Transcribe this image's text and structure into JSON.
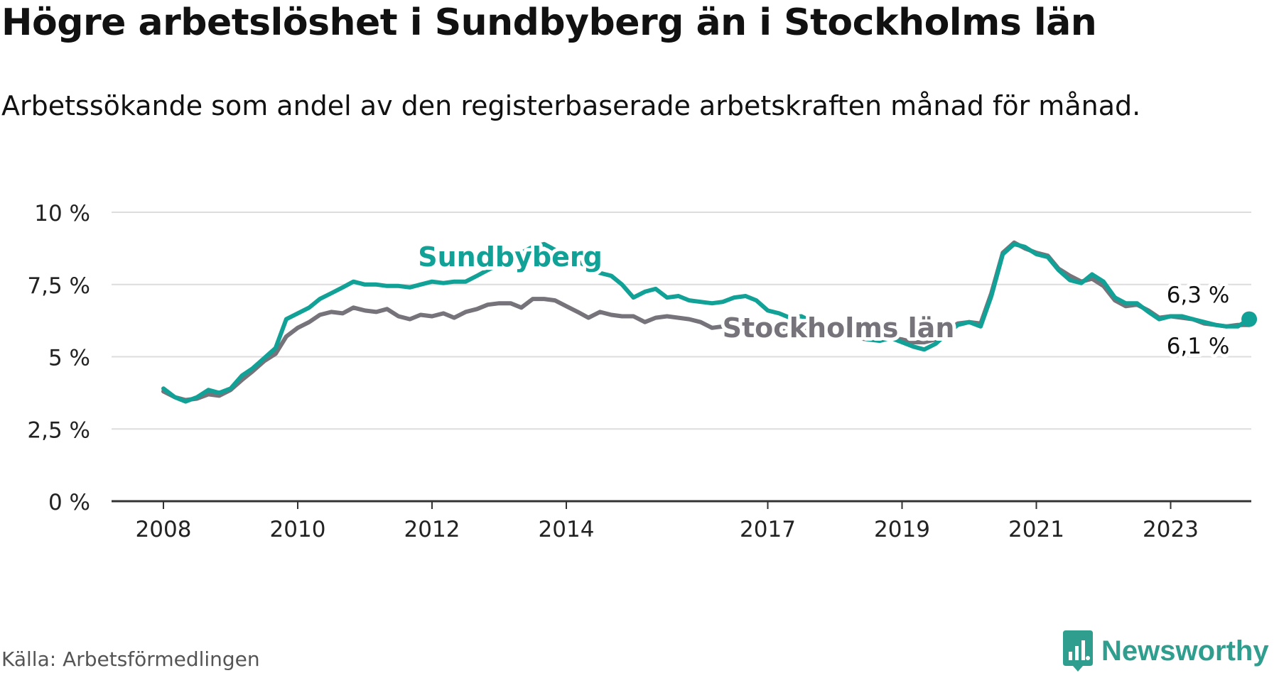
{
  "header": {
    "title": "Högre arbetslöshet i Sundbyberg än i Stockholms län",
    "subtitle": "Arbetssökande som andel av den registerbaserade arbetskraften månad för månad."
  },
  "footer": {
    "source": "Källa: Arbetsförmedlingen",
    "brand": "Newsworthy"
  },
  "colors": {
    "sundbyberg": "#11a196",
    "stockholm": "#76737b",
    "grid": "#dddddd",
    "axis": "#333333",
    "brand": "#2f9e8f"
  },
  "chart_data": {
    "type": "line",
    "title": "Högre arbetslöshet i Sundbyberg än i Stockholms län",
    "ylabel": "",
    "xlabel": "",
    "ylim": [
      0,
      10
    ],
    "y_ticks": [
      0,
      2.5,
      5,
      7.5,
      10
    ],
    "y_tick_labels": [
      "0 %",
      "2,5 %",
      "5 %",
      "7,5 %",
      "10 %"
    ],
    "x_ticks": [
      2008,
      2010,
      2012,
      2014,
      2017,
      2019,
      2021,
      2023
    ],
    "x_tick_labels": [
      "2008",
      "2010",
      "2012",
      "2014",
      "2017",
      "2019",
      "2021",
      "2023"
    ],
    "series": [
      {
        "name": "Sundbyberg",
        "end_label": "6,3 %",
        "points": [
          [
            2008.0,
            3.9
          ],
          [
            2008.17,
            3.6
          ],
          [
            2008.33,
            3.45
          ],
          [
            2008.5,
            3.6
          ],
          [
            2008.67,
            3.85
          ],
          [
            2008.83,
            3.75
          ],
          [
            2009.0,
            3.9
          ],
          [
            2009.17,
            4.35
          ],
          [
            2009.33,
            4.6
          ],
          [
            2009.5,
            4.95
          ],
          [
            2009.67,
            5.3
          ],
          [
            2009.83,
            6.3
          ],
          [
            2010.0,
            6.5
          ],
          [
            2010.17,
            6.7
          ],
          [
            2010.33,
            7.0
          ],
          [
            2010.5,
            7.2
          ],
          [
            2010.67,
            7.4
          ],
          [
            2010.83,
            7.6
          ],
          [
            2011.0,
            7.5
          ],
          [
            2011.17,
            7.5
          ],
          [
            2011.33,
            7.45
          ],
          [
            2011.5,
            7.45
          ],
          [
            2011.67,
            7.4
          ],
          [
            2011.83,
            7.5
          ],
          [
            2012.0,
            7.6
          ],
          [
            2012.17,
            7.55
          ],
          [
            2012.33,
            7.6
          ],
          [
            2012.5,
            7.6
          ],
          [
            2012.67,
            7.8
          ],
          [
            2012.83,
            8.0
          ],
          [
            2013.0,
            8.2
          ],
          [
            2013.17,
            8.4
          ],
          [
            2013.33,
            8.6
          ],
          [
            2013.5,
            8.8
          ],
          [
            2013.67,
            8.9
          ],
          [
            2013.83,
            8.7
          ],
          [
            2014.0,
            8.5
          ],
          [
            2014.17,
            8.3
          ],
          [
            2014.33,
            8.1
          ],
          [
            2014.5,
            7.9
          ],
          [
            2014.67,
            7.8
          ],
          [
            2014.83,
            7.5
          ],
          [
            2015.0,
            7.05
          ],
          [
            2015.17,
            7.25
          ],
          [
            2015.33,
            7.35
          ],
          [
            2015.5,
            7.05
          ],
          [
            2015.67,
            7.1
          ],
          [
            2015.83,
            6.95
          ],
          [
            2016.0,
            6.9
          ],
          [
            2016.17,
            6.85
          ],
          [
            2016.33,
            6.9
          ],
          [
            2016.5,
            7.05
          ],
          [
            2016.67,
            7.1
          ],
          [
            2016.83,
            6.95
          ],
          [
            2017.0,
            6.6
          ],
          [
            2017.17,
            6.5
          ],
          [
            2017.33,
            6.35
          ],
          [
            2017.5,
            6.4
          ],
          [
            2017.67,
            6.2
          ],
          [
            2017.83,
            6.0
          ],
          [
            2018.0,
            5.9
          ],
          [
            2018.17,
            5.8
          ],
          [
            2018.33,
            5.7
          ],
          [
            2018.5,
            5.6
          ],
          [
            2018.67,
            5.55
          ],
          [
            2018.83,
            5.65
          ],
          [
            2019.0,
            5.5
          ],
          [
            2019.17,
            5.35
          ],
          [
            2019.33,
            5.25
          ],
          [
            2019.5,
            5.45
          ],
          [
            2019.67,
            5.8
          ],
          [
            2019.83,
            6.1
          ],
          [
            2020.0,
            6.2
          ],
          [
            2020.17,
            6.05
          ],
          [
            2020.33,
            7.1
          ],
          [
            2020.5,
            8.55
          ],
          [
            2020.67,
            8.9
          ],
          [
            2020.83,
            8.8
          ],
          [
            2021.0,
            8.55
          ],
          [
            2021.17,
            8.45
          ],
          [
            2021.33,
            8.0
          ],
          [
            2021.5,
            7.65
          ],
          [
            2021.67,
            7.55
          ],
          [
            2021.83,
            7.85
          ],
          [
            2022.0,
            7.6
          ],
          [
            2022.17,
            7.05
          ],
          [
            2022.33,
            6.85
          ],
          [
            2022.5,
            6.85
          ],
          [
            2022.67,
            6.55
          ],
          [
            2022.83,
            6.3
          ],
          [
            2023.0,
            6.4
          ],
          [
            2023.17,
            6.4
          ],
          [
            2023.33,
            6.3
          ],
          [
            2023.5,
            6.2
          ],
          [
            2023.67,
            6.1
          ],
          [
            2023.83,
            6.05
          ],
          [
            2024.0,
            6.05
          ],
          [
            2024.17,
            6.3
          ]
        ]
      },
      {
        "name": "Stockholms län",
        "end_label": "6,1 %",
        "points": [
          [
            2008.0,
            3.8
          ],
          [
            2008.17,
            3.6
          ],
          [
            2008.33,
            3.5
          ],
          [
            2008.5,
            3.55
          ],
          [
            2008.67,
            3.7
          ],
          [
            2008.83,
            3.65
          ],
          [
            2009.0,
            3.85
          ],
          [
            2009.17,
            4.2
          ],
          [
            2009.33,
            4.5
          ],
          [
            2009.5,
            4.85
          ],
          [
            2009.67,
            5.1
          ],
          [
            2009.83,
            5.7
          ],
          [
            2010.0,
            6.0
          ],
          [
            2010.17,
            6.2
          ],
          [
            2010.33,
            6.45
          ],
          [
            2010.5,
            6.55
          ],
          [
            2010.67,
            6.5
          ],
          [
            2010.83,
            6.7
          ],
          [
            2011.0,
            6.6
          ],
          [
            2011.17,
            6.55
          ],
          [
            2011.33,
            6.65
          ],
          [
            2011.5,
            6.4
          ],
          [
            2011.67,
            6.3
          ],
          [
            2011.83,
            6.45
          ],
          [
            2012.0,
            6.4
          ],
          [
            2012.17,
            6.5
          ],
          [
            2012.33,
            6.35
          ],
          [
            2012.5,
            6.55
          ],
          [
            2012.67,
            6.65
          ],
          [
            2012.83,
            6.8
          ],
          [
            2013.0,
            6.85
          ],
          [
            2013.17,
            6.85
          ],
          [
            2013.33,
            6.7
          ],
          [
            2013.5,
            7.0
          ],
          [
            2013.67,
            7.0
          ],
          [
            2013.83,
            6.95
          ],
          [
            2014.0,
            6.75
          ],
          [
            2014.17,
            6.55
          ],
          [
            2014.33,
            6.35
          ],
          [
            2014.5,
            6.55
          ],
          [
            2014.67,
            6.45
          ],
          [
            2014.83,
            6.4
          ],
          [
            2015.0,
            6.4
          ],
          [
            2015.17,
            6.2
          ],
          [
            2015.33,
            6.35
          ],
          [
            2015.5,
            6.4
          ],
          [
            2015.67,
            6.35
          ],
          [
            2015.83,
            6.3
          ],
          [
            2016.0,
            6.2
          ],
          [
            2016.17,
            6.0
          ],
          [
            2016.33,
            6.05
          ],
          [
            2016.5,
            6.1
          ],
          [
            2016.67,
            6.0
          ],
          [
            2016.83,
            6.0
          ],
          [
            2017.0,
            5.95
          ],
          [
            2017.17,
            5.9
          ],
          [
            2017.33,
            5.9
          ],
          [
            2017.5,
            5.95
          ],
          [
            2017.67,
            5.9
          ],
          [
            2017.83,
            5.8
          ],
          [
            2018.0,
            5.75
          ],
          [
            2018.17,
            5.7
          ],
          [
            2018.33,
            5.65
          ],
          [
            2018.5,
            5.6
          ],
          [
            2018.67,
            5.6
          ],
          [
            2018.83,
            5.65
          ],
          [
            2019.0,
            5.6
          ],
          [
            2019.17,
            5.5
          ],
          [
            2019.33,
            5.5
          ],
          [
            2019.5,
            5.6
          ],
          [
            2019.67,
            5.9
          ],
          [
            2019.83,
            6.15
          ],
          [
            2020.0,
            6.2
          ],
          [
            2020.17,
            6.15
          ],
          [
            2020.33,
            7.2
          ],
          [
            2020.5,
            8.6
          ],
          [
            2020.67,
            8.95
          ],
          [
            2020.83,
            8.75
          ],
          [
            2021.0,
            8.6
          ],
          [
            2021.17,
            8.5
          ],
          [
            2021.33,
            8.05
          ],
          [
            2021.5,
            7.8
          ],
          [
            2021.67,
            7.6
          ],
          [
            2021.83,
            7.7
          ],
          [
            2022.0,
            7.45
          ],
          [
            2022.17,
            6.95
          ],
          [
            2022.33,
            6.75
          ],
          [
            2022.5,
            6.8
          ],
          [
            2022.67,
            6.6
          ],
          [
            2022.83,
            6.35
          ],
          [
            2023.0,
            6.4
          ],
          [
            2023.17,
            6.35
          ],
          [
            2023.33,
            6.3
          ],
          [
            2023.5,
            6.15
          ],
          [
            2023.67,
            6.1
          ],
          [
            2023.83,
            6.05
          ],
          [
            2024.0,
            6.1
          ],
          [
            2024.17,
            6.1
          ]
        ]
      }
    ],
    "annotations": [
      {
        "series": "Sundbyberg",
        "text": "Sundbyberg"
      },
      {
        "series": "Stockholms län",
        "text": "Stockholms län"
      }
    ]
  }
}
